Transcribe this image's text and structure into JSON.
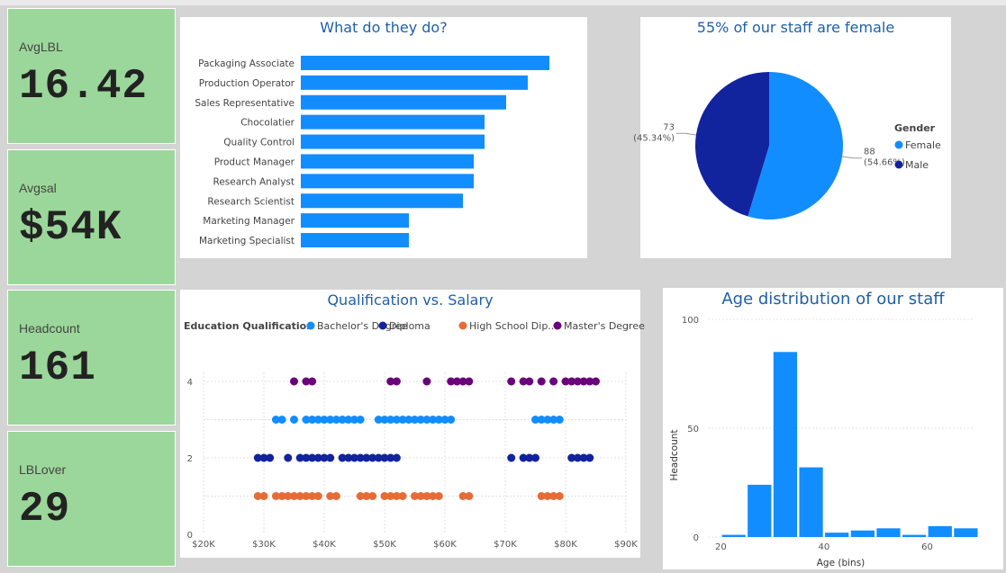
{
  "kpis": [
    {
      "label": "AvgLBL",
      "value": "16.42"
    },
    {
      "label": "Avgsal",
      "value": "$54K"
    },
    {
      "label": "Headcount",
      "value": "161"
    },
    {
      "label": "LBLover",
      "value": "29"
    }
  ],
  "colors": {
    "bar": "#118dff",
    "female": "#118dff",
    "male": "#12239e",
    "bachelor": "#118dff",
    "diploma": "#12239e",
    "highschool": "#e66c37",
    "masters": "#6b007b",
    "title": "#1f5fa8",
    "kpi_bg": "#9bd79a"
  },
  "chart_data": [
    {
      "type": "bar",
      "orientation": "horizontal",
      "title": "What do they do?",
      "categories": [
        "Packaging Associate",
        "Production Operator",
        "Sales Representative",
        "Chocolatier",
        "Quality Control",
        "Product Manager",
        "Research Analyst",
        "Research Scientist",
        "Marketing Manager",
        "Marketing Specialist"
      ],
      "values": [
        23,
        21,
        19,
        17,
        17,
        16,
        16,
        15,
        10,
        10
      ],
      "xlim": [
        0,
        23
      ]
    },
    {
      "type": "pie",
      "title": "55% of our staff are female",
      "legend_title": "Gender",
      "legend_position": "right",
      "slices": [
        {
          "name": "Female",
          "value": 88,
          "label_count": "88",
          "label_pct": "(54.66%)"
        },
        {
          "name": "Male",
          "value": 73,
          "label_count": "73",
          "label_pct": "(45.34%)"
        }
      ]
    },
    {
      "type": "scatter",
      "title": "Qualification vs. Salary",
      "legend_title": "Education Qualification",
      "legend_position": "top",
      "x_ticks": [
        "$20K",
        "$30K",
        "$40K",
        "$50K",
        "$60K",
        "$70K",
        "$80K",
        "$90K"
      ],
      "xlim": [
        20000,
        90000
      ],
      "y_ticks": [
        "0",
        "2",
        "4"
      ],
      "ylim": [
        0,
        4
      ],
      "grid": true,
      "series": [
        {
          "name": "Bachelor's Degree",
          "y": 3,
          "x": [
            32,
            33,
            35,
            37,
            38,
            39,
            40,
            41,
            42,
            43,
            44,
            45,
            46,
            49,
            50,
            51,
            52,
            53,
            54,
            55,
            56,
            57,
            58,
            59,
            60,
            61,
            75,
            76,
            77,
            78,
            79
          ]
        },
        {
          "name": "Diploma",
          "y": 2,
          "x": [
            29,
            30,
            31,
            34,
            36,
            37,
            38,
            39,
            40,
            41,
            43,
            44,
            45,
            46,
            47,
            48,
            49,
            50,
            51,
            52,
            71,
            73,
            74,
            75,
            81,
            82,
            83,
            84
          ]
        },
        {
          "name": "High School Dip...",
          "y": 1,
          "x": [
            29,
            30,
            32,
            33,
            34,
            35,
            36,
            37,
            38,
            39,
            41,
            42,
            46,
            47,
            48,
            50,
            51,
            52,
            53,
            55,
            56,
            57,
            58,
            59,
            63,
            64,
            76,
            77,
            78,
            79
          ]
        },
        {
          "name": "Master's Degree",
          "y": 4,
          "x": [
            35,
            37,
            38,
            51,
            52,
            57,
            61,
            62,
            63,
            64,
            71,
            73,
            74,
            76,
            78,
            80,
            81,
            82,
            83,
            84,
            85
          ]
        }
      ]
    },
    {
      "type": "bar",
      "title": "Age distribution of our staff",
      "xlabel": "Age (bins)",
      "ylabel": "Headcount",
      "x_ticks": [
        "20",
        "40",
        "60"
      ],
      "y_ticks": [
        "0",
        "50",
        "100"
      ],
      "ylim": [
        0,
        100
      ],
      "bin_width": 5,
      "bins": [
        20,
        25,
        30,
        35,
        40,
        45,
        50,
        55,
        60,
        65
      ],
      "values": [
        1,
        24,
        85,
        32,
        2,
        3,
        4,
        1,
        5,
        4
      ]
    }
  ]
}
